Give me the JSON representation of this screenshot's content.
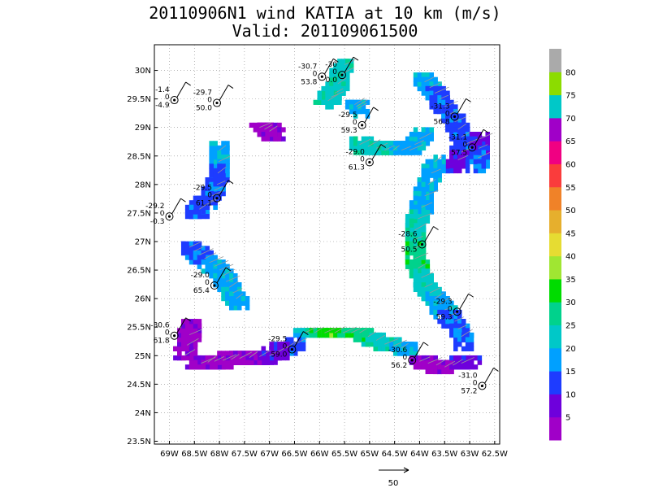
{
  "title": {
    "line1": "20110906N1 wind KATIA at 10 km (m/s)",
    "line2": "Valid: 201109061500"
  },
  "chart_data": {
    "type": "heatmap",
    "xlim": [
      -69.3,
      -62.4
    ],
    "ylim": [
      23.45,
      30.45
    ],
    "x_ticks": [
      {
        "v": -69.0,
        "label": "69W"
      },
      {
        "v": -68.5,
        "label": "68.5W"
      },
      {
        "v": -68.0,
        "label": "68W"
      },
      {
        "v": -67.5,
        "label": "67.5W"
      },
      {
        "v": -67.0,
        "label": "67W"
      },
      {
        "v": -66.5,
        "label": "66.5W"
      },
      {
        "v": -66.0,
        "label": "66W"
      },
      {
        "v": -65.5,
        "label": "65.5W"
      },
      {
        "v": -65.0,
        "label": "65W"
      },
      {
        "v": -64.5,
        "label": "64.5W"
      },
      {
        "v": -64.0,
        "label": "64W"
      },
      {
        "v": -63.5,
        "label": "63.5W"
      },
      {
        "v": -63.0,
        "label": "63W"
      },
      {
        "v": -62.5,
        "label": "62.5W"
      }
    ],
    "y_ticks": [
      {
        "v": 30.0,
        "label": "30N"
      },
      {
        "v": 29.5,
        "label": "29.5N"
      },
      {
        "v": 29.0,
        "label": "29N"
      },
      {
        "v": 28.5,
        "label": "28.5N"
      },
      {
        "v": 28.0,
        "label": "28N"
      },
      {
        "v": 27.5,
        "label": "27.5N"
      },
      {
        "v": 27.0,
        "label": "27N"
      },
      {
        "v": 26.5,
        "label": "26.5N"
      },
      {
        "v": 26.0,
        "label": "26N"
      },
      {
        "v": 25.5,
        "label": "25.5N"
      },
      {
        "v": 25.0,
        "label": "25N"
      },
      {
        "v": 24.5,
        "label": "24.5N"
      },
      {
        "v": 24.0,
        "label": "24N"
      },
      {
        "v": 23.5,
        "label": "23.5N"
      }
    ],
    "grid": true,
    "colorbar": {
      "levels": [
        "5",
        "10",
        "15",
        "20",
        "25",
        "30",
        "35",
        "40",
        "45",
        "50",
        "55",
        "60",
        "65",
        "70",
        "75",
        "80"
      ],
      "colors": [
        "#a000c8",
        "#6e00dc",
        "#1e3cff",
        "#00a0ff",
        "#00c8c8",
        "#00d28c",
        "#00dc00",
        "#a0e632",
        "#e6dc32",
        "#e6af2d",
        "#f08228",
        "#fa3c3c",
        "#f00082",
        "#a000c8",
        "#00c8c8",
        "#8cdc00",
        "#aaaaaa"
      ]
    },
    "stations": [
      {
        "lon": -65.55,
        "lat": 29.92,
        "labels": [
          "-30",
          "0",
          "0.0"
        ]
      },
      {
        "lon": -65.95,
        "lat": 29.89,
        "labels": [
          "-30.7",
          "0",
          "53.8"
        ]
      },
      {
        "lon": -68.9,
        "lat": 29.48,
        "labels": [
          "-1.4",
          "0",
          "-4.9"
        ]
      },
      {
        "lon": -68.05,
        "lat": 29.43,
        "labels": [
          "-29.7",
          "0",
          "50.0"
        ]
      },
      {
        "lon": -65.15,
        "lat": 29.04,
        "labels": [
          "-29.5",
          "0",
          "59.3"
        ]
      },
      {
        "lon": -63.3,
        "lat": 29.19,
        "labels": [
          "-31.3",
          "0",
          "56.8"
        ]
      },
      {
        "lon": -62.95,
        "lat": 28.65,
        "labels": [
          "-31.1",
          "0",
          "57.5"
        ]
      },
      {
        "lon": -65.0,
        "lat": 28.39,
        "labels": [
          "-29.0",
          "0",
          "61.3"
        ]
      },
      {
        "lon": -68.05,
        "lat": 27.76,
        "labels": [
          "-29.5",
          "0",
          "61.1"
        ]
      },
      {
        "lon": -69.0,
        "lat": 27.44,
        "labels": [
          "-29.2",
          "0",
          "-0.3"
        ]
      },
      {
        "lon": -63.95,
        "lat": 26.95,
        "labels": [
          "-28.6",
          "0",
          "50.5"
        ]
      },
      {
        "lon": -68.1,
        "lat": 26.23,
        "labels": [
          "-29.0",
          "0",
          "65.4"
        ]
      },
      {
        "lon": -63.25,
        "lat": 25.77,
        "labels": [
          "-29.3",
          "0",
          "59.3"
        ]
      },
      {
        "lon": -68.9,
        "lat": 25.35,
        "labels": [
          "-30.6",
          "0",
          "61.8"
        ]
      },
      {
        "lon": -66.55,
        "lat": 25.11,
        "labels": [
          "-29.5",
          "0",
          "59.0"
        ]
      },
      {
        "lon": -64.15,
        "lat": 24.92,
        "labels": [
          "-30.6",
          "0",
          "56.2"
        ]
      },
      {
        "lon": -62.75,
        "lat": 24.47,
        "labels": [
          "-31.0",
          "0",
          "57.2"
        ]
      }
    ],
    "reference_vector": {
      "magnitude": 50,
      "label": "50"
    }
  }
}
